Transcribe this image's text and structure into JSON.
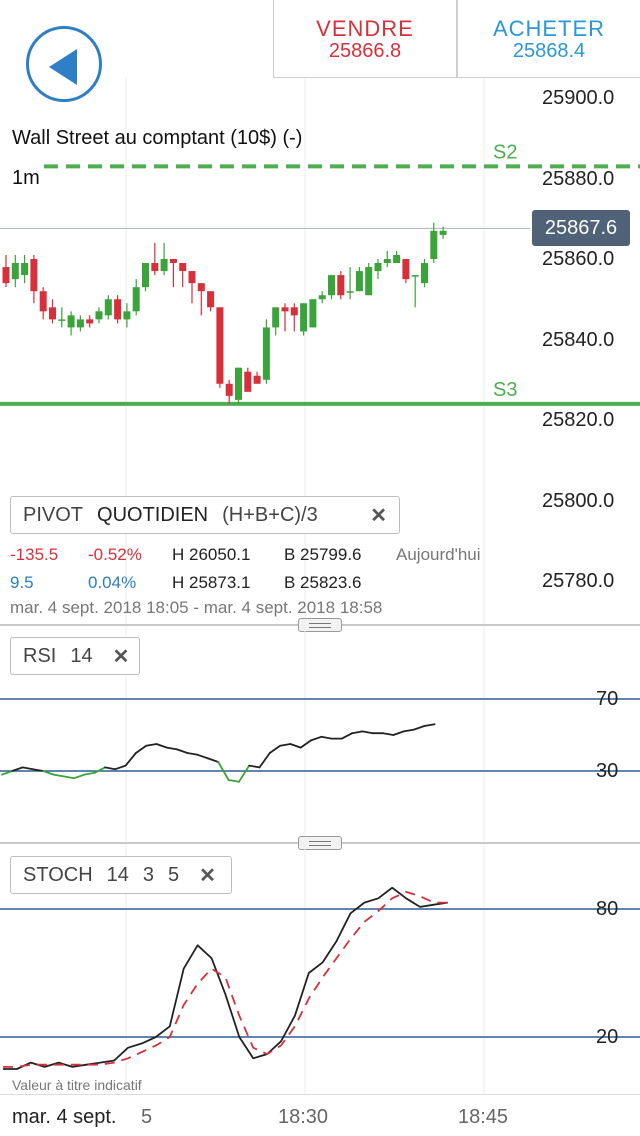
{
  "header": {
    "sell_label": "VENDRE",
    "sell_value": "25866.8",
    "buy_label": "ACHETER",
    "buy_value": "25868.4",
    "back_icon": "back-arrow-icon"
  },
  "main_chart": {
    "instrument": "Wall Street au comptant (10$) (-)",
    "timeframe": "1m",
    "y_ticks": [
      "25900.0",
      "25880.0",
      "25860.0",
      "25840.0",
      "25820.0",
      "25800.0",
      "25780.0"
    ],
    "current_price": "25867.6",
    "levels": [
      {
        "label": "S2",
        "value": 25883
      },
      {
        "label": "S3",
        "value": 25824
      }
    ],
    "colors": {
      "up": "#3aa33a",
      "down": "#d8303a",
      "level": "#4cae4c",
      "price_line": "#aab4c0",
      "price_tag": "#4f6278"
    }
  },
  "pivot": {
    "name": "PIVOT",
    "period": "QUOTIDIEN",
    "formula": "(H+B+C)/3",
    "row1": {
      "change": "-135.5",
      "pct": "-0.52%",
      "high": "H 26050.1",
      "low": "B 25799.6",
      "label": "Aujourd'hui"
    },
    "row2": {
      "change": "9.5",
      "pct": "0.04%",
      "high": "H 25873.1",
      "low": "B 25823.6"
    },
    "range": "mar. 4 sept. 2018 18:05 - mar. 4 sept. 2018 18:58"
  },
  "rsi": {
    "name": "RSI",
    "period": "14",
    "levels": [
      "70",
      "30"
    ]
  },
  "stoch": {
    "name": "STOCH",
    "p1": "14",
    "p2": "3",
    "p3": "5",
    "levels": [
      "80",
      "20"
    ]
  },
  "footer": {
    "disclaimer": "Valeur à titre indicatif",
    "x_labels": [
      "mar. 4 sept.",
      "5",
      "18:30",
      "18:45"
    ]
  },
  "chart_data": [
    {
      "type": "candlestick",
      "title": "Wall Street au comptant (10$) (-)",
      "ylim": [
        25775,
        25905
      ],
      "ticks": [
        25900,
        25880,
        25860,
        25840,
        25820,
        25800,
        25780
      ],
      "candles": [
        {
          "o": 25858,
          "h": 25861,
          "l": 25853,
          "c": 25854
        },
        {
          "o": 25855,
          "h": 25861,
          "l": 25853,
          "c": 25859
        },
        {
          "o": 25856,
          "h": 25861,
          "l": 25854,
          "c": 25859
        },
        {
          "o": 25860,
          "h": 25861,
          "l": 25849,
          "c": 25852
        },
        {
          "o": 25852,
          "h": 25853,
          "l": 25845,
          "c": 25847
        },
        {
          "o": 25848,
          "h": 25850,
          "l": 25844,
          "c": 25845
        },
        {
          "o": 25845,
          "h": 25848,
          "l": 25843,
          "c": 25845
        },
        {
          "o": 25843,
          "h": 25847,
          "l": 25841,
          "c": 25846
        },
        {
          "o": 25843,
          "h": 25846,
          "l": 25842,
          "c": 25845
        },
        {
          "o": 25845,
          "h": 25846,
          "l": 25843,
          "c": 25844
        },
        {
          "o": 25845,
          "h": 25848,
          "l": 25844,
          "c": 25847
        },
        {
          "o": 25846,
          "h": 25851,
          "l": 25845,
          "c": 25850
        },
        {
          "o": 25850,
          "h": 25851,
          "l": 25844,
          "c": 25845
        },
        {
          "o": 25845,
          "h": 25849,
          "l": 25843,
          "c": 25847
        },
        {
          "o": 25847,
          "h": 25855,
          "l": 25846,
          "c": 25853
        },
        {
          "o": 25853,
          "h": 25859,
          "l": 25852,
          "c": 25859
        },
        {
          "o": 25859,
          "h": 25864,
          "l": 25856,
          "c": 25857
        },
        {
          "o": 25857,
          "h": 25864,
          "l": 25856,
          "c": 25860
        },
        {
          "o": 25860,
          "h": 25860,
          "l": 25853,
          "c": 25859
        },
        {
          "o": 25859,
          "h": 25859,
          "l": 25853,
          "c": 25857
        },
        {
          "o": 25857,
          "h": 25857,
          "l": 25849,
          "c": 25854
        },
        {
          "o": 25854,
          "h": 25854,
          "l": 25846,
          "c": 25852
        },
        {
          "o": 25852,
          "h": 25852,
          "l": 25847,
          "c": 25848
        },
        {
          "o": 25848,
          "h": 25848,
          "l": 25828,
          "c": 25829
        },
        {
          "o": 25829,
          "h": 25830,
          "l": 25824,
          "c": 25826
        },
        {
          "o": 25825,
          "h": 25833,
          "l": 25824,
          "c": 25833
        },
        {
          "o": 25832,
          "h": 25833,
          "l": 25828,
          "c": 25827
        },
        {
          "o": 25831,
          "h": 25832,
          "l": 25829,
          "c": 25829
        },
        {
          "o": 25830,
          "h": 25845,
          "l": 25829,
          "c": 25843
        },
        {
          "o": 25843,
          "h": 25848,
          "l": 25841,
          "c": 25848
        },
        {
          "o": 25848,
          "h": 25849,
          "l": 25842,
          "c": 25847
        },
        {
          "o": 25848,
          "h": 25849,
          "l": 25842,
          "c": 25846
        },
        {
          "o": 25842,
          "h": 25849,
          "l": 25841,
          "c": 25849
        },
        {
          "o": 25843,
          "h": 25850,
          "l": 25843,
          "c": 25850
        },
        {
          "o": 25850,
          "h": 25852,
          "l": 25849,
          "c": 25851
        },
        {
          "o": 25851,
          "h": 25856,
          "l": 25850,
          "c": 25856
        },
        {
          "o": 25856,
          "h": 25857,
          "l": 25850,
          "c": 25851
        },
        {
          "o": 25852,
          "h": 25858,
          "l": 25850,
          "c": 25852
        },
        {
          "o": 25852,
          "h": 25858,
          "l": 25852,
          "c": 25857
        },
        {
          "o": 25851,
          "h": 25859,
          "l": 25851,
          "c": 25858
        },
        {
          "o": 25857,
          "h": 25860,
          "l": 25855,
          "c": 25859
        },
        {
          "o": 25859,
          "h": 25862,
          "l": 25858,
          "c": 25860
        },
        {
          "o": 25859,
          "h": 25862,
          "l": 25859,
          "c": 25861
        },
        {
          "o": 25860,
          "h": 25860,
          "l": 25854,
          "c": 25855
        },
        {
          "o": 25856,
          "h": 25856,
          "l": 25848,
          "c": 25856
        },
        {
          "o": 25854,
          "h": 25860,
          "l": 25853,
          "c": 25859
        },
        {
          "o": 25860,
          "h": 25869,
          "l": 25859,
          "c": 25867
        },
        {
          "o": 25866,
          "h": 25868,
          "l": 25865,
          "c": 25867
        }
      ]
    },
    {
      "type": "line",
      "title": "RSI 14",
      "ylim": [
        0,
        100
      ],
      "guides": [
        70,
        30
      ],
      "values": [
        28,
        30,
        32,
        31,
        30,
        28,
        27,
        26,
        28,
        29,
        32,
        31,
        33,
        40,
        44,
        45,
        43,
        42,
        40,
        39,
        37,
        35,
        25,
        24,
        33,
        32,
        40,
        44,
        45,
        43,
        47,
        49,
        48,
        48,
        51,
        52,
        51,
        51,
        50,
        52,
        53,
        55,
        56
      ]
    },
    {
      "type": "line",
      "title": "STOCH 14 3 5",
      "ylim": [
        0,
        100
      ],
      "guides": [
        80,
        20
      ],
      "series": [
        {
          "values": [
            5,
            5,
            8,
            6,
            8,
            6,
            7,
            8,
            9,
            15,
            17,
            20,
            25,
            52,
            63,
            57,
            40,
            20,
            10,
            12,
            18,
            30,
            50,
            55,
            65,
            78,
            83,
            85,
            90,
            85,
            81,
            82,
            83
          ]
        },
        {
          "values": [
            6,
            6,
            7,
            7,
            7,
            7,
            7,
            7,
            8,
            10,
            13,
            16,
            20,
            35,
            45,
            52,
            48,
            30,
            15,
            12,
            16,
            25,
            38,
            48,
            57,
            66,
            74,
            79,
            85,
            88,
            86,
            83,
            83
          ]
        }
      ]
    }
  ]
}
